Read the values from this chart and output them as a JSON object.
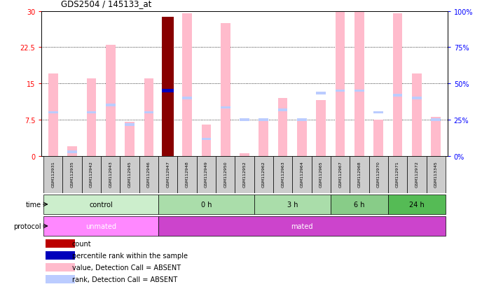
{
  "title": "GDS2504 / 145133_at",
  "samples": [
    "GSM112931",
    "GSM112935",
    "GSM112942",
    "GSM112943",
    "GSM112945",
    "GSM112946",
    "GSM112947",
    "GSM112948",
    "GSM112949",
    "GSM112950",
    "GSM112952",
    "GSM112962",
    "GSM112963",
    "GSM112964",
    "GSM112965",
    "GSM112967",
    "GSM112968",
    "GSM112970",
    "GSM112971",
    "GSM112972",
    "GSM113345"
  ],
  "pink_values": [
    17.0,
    2.0,
    16.0,
    23.0,
    7.0,
    16.0,
    28.8,
    29.5,
    6.5,
    27.5,
    0.5,
    7.5,
    12.0,
    7.5,
    11.5,
    30.0,
    30.0,
    7.5,
    29.5,
    17.0,
    8.0
  ],
  "blue_values": [
    9.0,
    0.8,
    9.0,
    10.5,
    6.5,
    9.0,
    13.5,
    12.0,
    3.5,
    10.0,
    7.5,
    7.5,
    9.5,
    7.5,
    13.0,
    13.5,
    13.5,
    9.0,
    12.5,
    12.0,
    7.5
  ],
  "red_bar_idx": 6,
  "red_bar_value": 28.8,
  "ylim_left": [
    0,
    30
  ],
  "ylim_right": [
    0,
    100
  ],
  "yticks_left": [
    0,
    7.5,
    15,
    22.5,
    30
  ],
  "yticks_right": [
    0,
    25,
    50,
    75,
    100
  ],
  "ytick_labels_left": [
    "0",
    "7.5",
    "15",
    "22.5",
    "30"
  ],
  "ytick_labels_right": [
    "0%",
    "25%",
    "50%",
    "75%",
    "100%"
  ],
  "time_groups": [
    {
      "label": "control",
      "start": 0,
      "end": 5,
      "color": "#cceecc"
    },
    {
      "label": "0 h",
      "start": 6,
      "end": 10,
      "color": "#aaddaa"
    },
    {
      "label": "3 h",
      "start": 11,
      "end": 14,
      "color": "#aaddaa"
    },
    {
      "label": "6 h",
      "start": 15,
      "end": 17,
      "color": "#88cc88"
    },
    {
      "label": "24 h",
      "start": 18,
      "end": 20,
      "color": "#55bb55"
    }
  ],
  "protocol_groups": [
    {
      "label": "unmated",
      "start": 0,
      "end": 5,
      "color": "#ff88ff"
    },
    {
      "label": "mated",
      "start": 6,
      "end": 20,
      "color": "#cc44cc"
    }
  ],
  "legend_items": [
    {
      "color": "#bb0000",
      "label": "count"
    },
    {
      "color": "#0000bb",
      "label": "percentile rank within the sample"
    },
    {
      "color": "#ffbbcc",
      "label": "value, Detection Call = ABSENT"
    },
    {
      "color": "#bbccff",
      "label": "rank, Detection Call = ABSENT"
    }
  ],
  "pink_bar_color": "#ffbbcc",
  "blue_marker_color": "#bbccff",
  "red_bar_color": "#880000",
  "blue_bar_color": "#0000bb",
  "sample_box_color": "#cccccc",
  "bg_color": "#ffffff"
}
